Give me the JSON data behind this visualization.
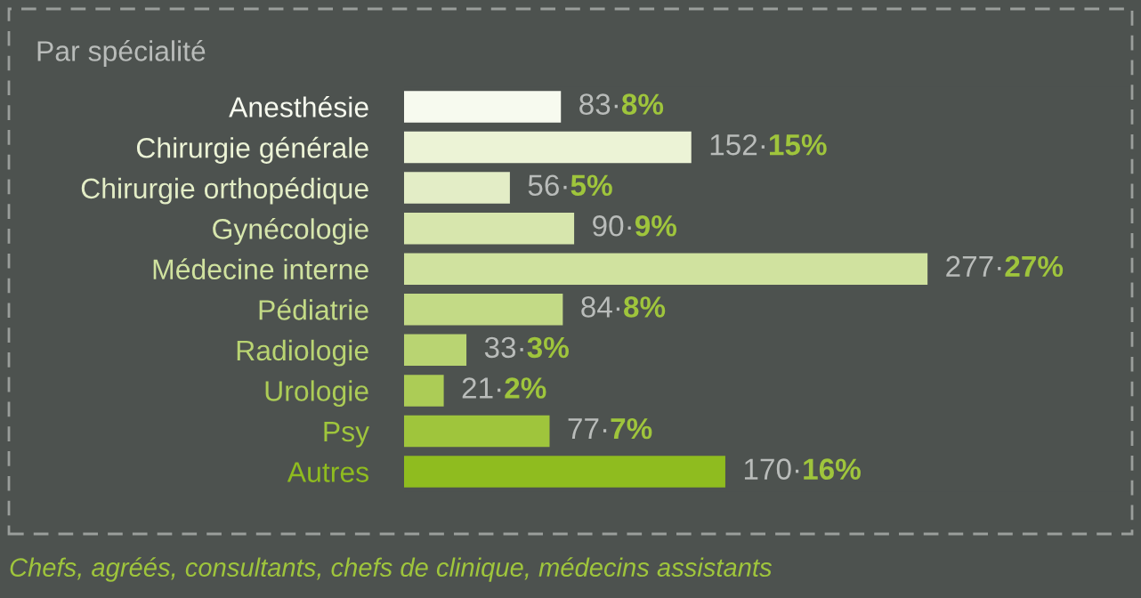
{
  "chart_data": {
    "type": "bar",
    "orientation": "horizontal",
    "title": "Par spécialité",
    "categories": [
      "Anesthésie",
      "Chirurgie générale",
      "Chirurgie orthopédique",
      "Gynécologie",
      "Médecine interne",
      "Pédiatrie",
      "Radiologie",
      "Urologie",
      "Psy",
      "Autres"
    ],
    "values": [
      83,
      152,
      56,
      90,
      277,
      84,
      33,
      21,
      77,
      170
    ],
    "value_labels": [
      "83·8%",
      "152·15%",
      "56·5%",
      "90·9%",
      "277·27%",
      "84·8%",
      "33·3%",
      "21·2%",
      "77·7%",
      "170·16%"
    ],
    "colors": [
      "#f7faef",
      "#ecf3d6",
      "#e3edc6",
      "#d7e6ad",
      "#d0e29f",
      "#c3da86",
      "#b9d472",
      "#accc56",
      "#9fc53c",
      "#8fbc1f"
    ],
    "annotations": [
      "Chefs, agréés, consultants, chefs de clinique, médecins assistants"
    ]
  }
}
